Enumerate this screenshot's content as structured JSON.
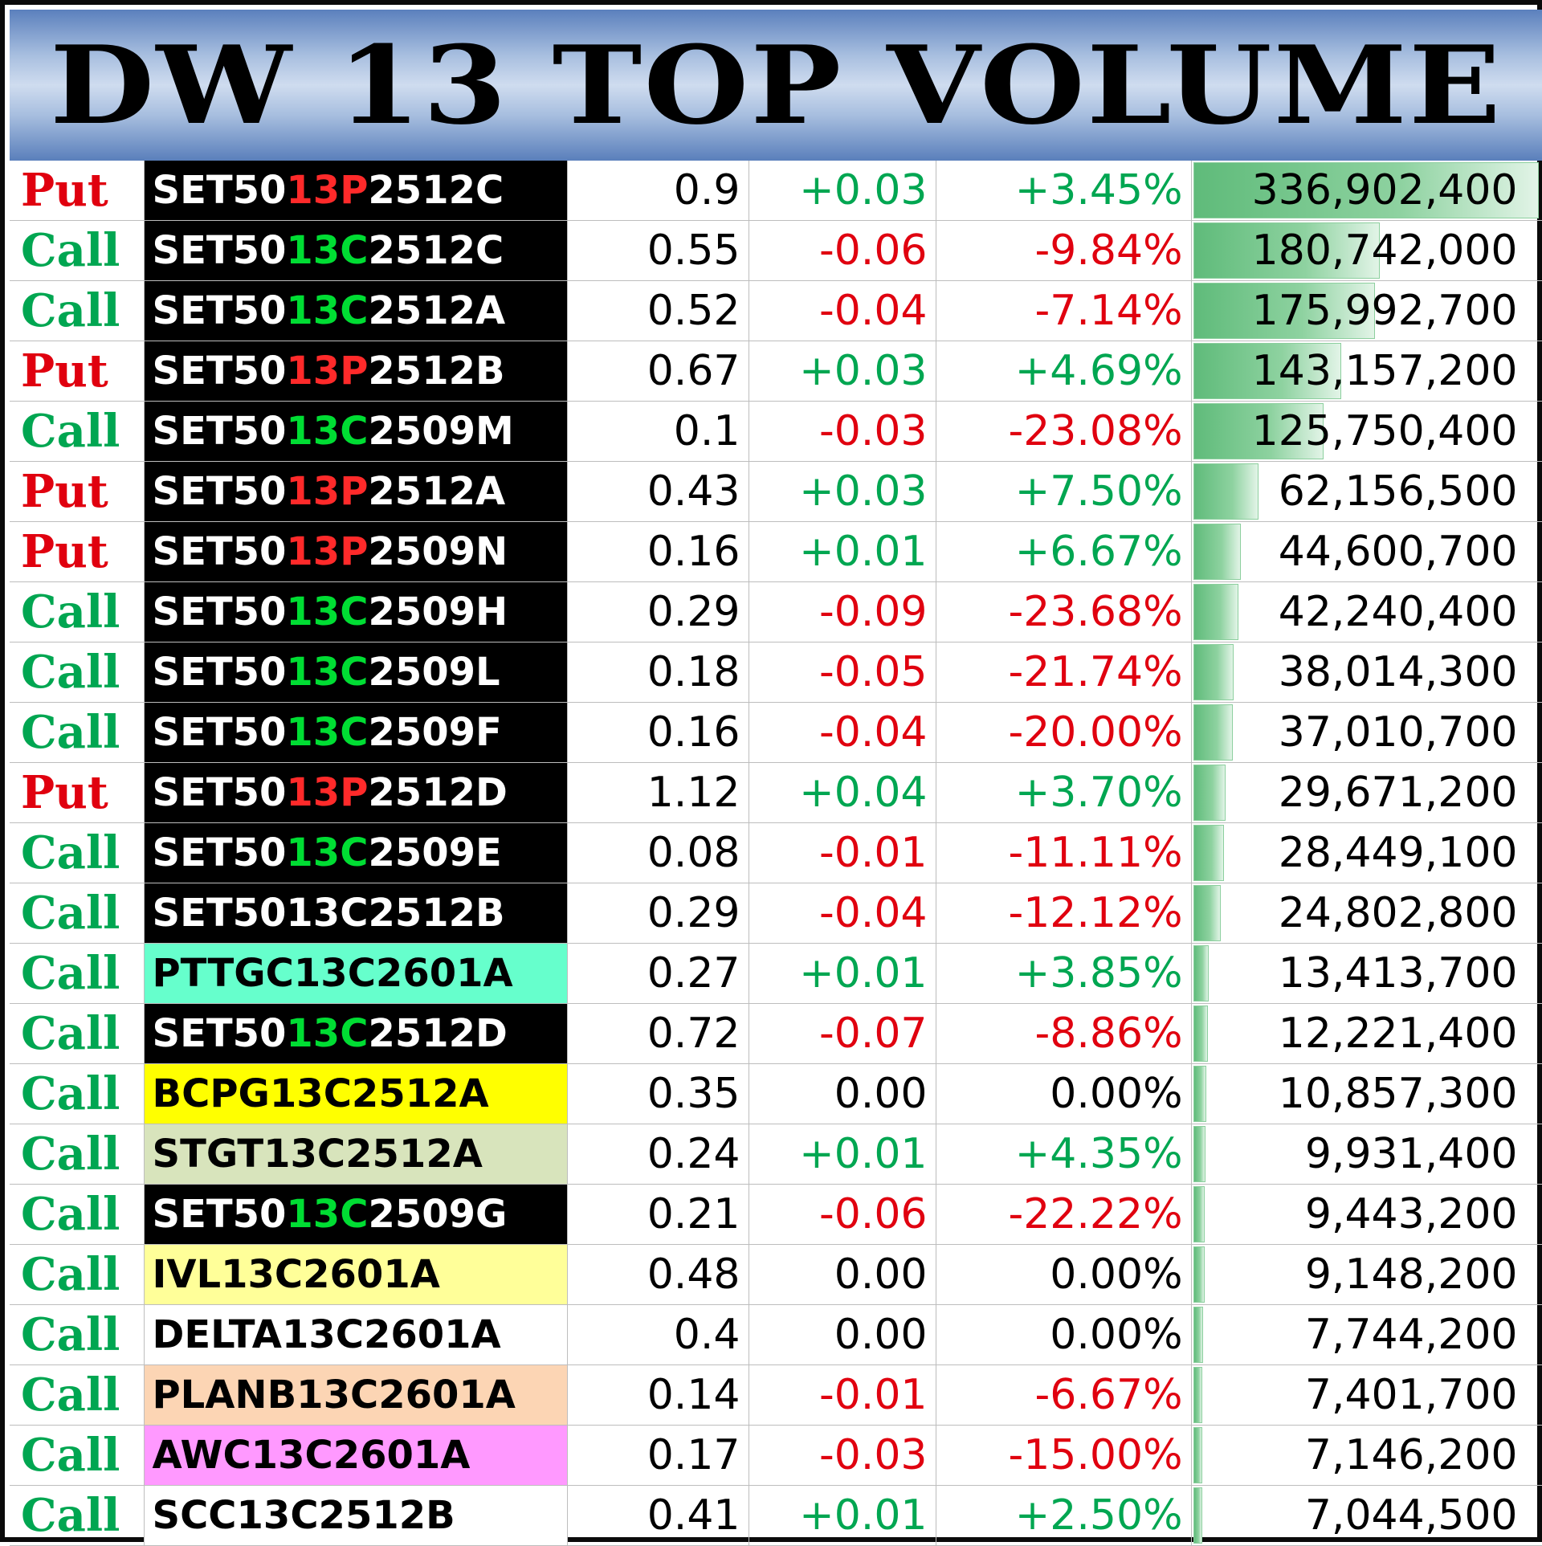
{
  "title": "DW 13 TOP VOLUME",
  "colors": {
    "put": "#e0000f",
    "call": "#00a651",
    "positive": "#00a651",
    "negative": "#e0000f",
    "neutral": "#000000",
    "highlight_13P": "#ff2a2a",
    "highlight_13C": "#00dd33"
  },
  "max_volume": 336902400,
  "rows": [
    {
      "type": "Put",
      "name_pre": "SET50",
      "name_mid": "13P",
      "name_post": "2512C",
      "name_bg": "#000000",
      "name_fg": "#ffffff",
      "mid_color": "#ff2a2a",
      "price": "0.9",
      "change": "+0.03",
      "pct": "+3.45%",
      "dir": "pos",
      "volume": "336,902,400",
      "volume_value": 336902400
    },
    {
      "type": "Call",
      "name_pre": "SET50",
      "name_mid": "13C",
      "name_post": "2512C",
      "name_bg": "#000000",
      "name_fg": "#ffffff",
      "mid_color": "#00dd33",
      "price": "0.55",
      "change": "-0.06",
      "pct": "-9.84%",
      "dir": "neg",
      "volume": "180,742,000",
      "volume_value": 180742000
    },
    {
      "type": "Call",
      "name_pre": "SET50",
      "name_mid": "13C",
      "name_post": "2512A",
      "name_bg": "#000000",
      "name_fg": "#ffffff",
      "mid_color": "#00dd33",
      "price": "0.52",
      "change": "-0.04",
      "pct": "-7.14%",
      "dir": "neg",
      "volume": "175,992,700",
      "volume_value": 175992700
    },
    {
      "type": "Put",
      "name_pre": "SET50",
      "name_mid": "13P",
      "name_post": "2512B",
      "name_bg": "#000000",
      "name_fg": "#ffffff",
      "mid_color": "#ff2a2a",
      "price": "0.67",
      "change": "+0.03",
      "pct": "+4.69%",
      "dir": "pos",
      "volume": "143,157,200",
      "volume_value": 143157200
    },
    {
      "type": "Call",
      "name_pre": "SET50",
      "name_mid": "13C",
      "name_post": "2509M",
      "name_bg": "#000000",
      "name_fg": "#ffffff",
      "mid_color": "#00dd33",
      "price": "0.1",
      "change": "-0.03",
      "pct": "-23.08%",
      "dir": "neg",
      "volume": "125,750,400",
      "volume_value": 125750400
    },
    {
      "type": "Put",
      "name_pre": "SET50",
      "name_mid": "13P",
      "name_post": "2512A",
      "name_bg": "#000000",
      "name_fg": "#ffffff",
      "mid_color": "#ff2a2a",
      "price": "0.43",
      "change": "+0.03",
      "pct": "+7.50%",
      "dir": "pos",
      "volume": "62,156,500",
      "volume_value": 62156500
    },
    {
      "type": "Put",
      "name_pre": "SET50",
      "name_mid": "13P",
      "name_post": "2509N",
      "name_bg": "#000000",
      "name_fg": "#ffffff",
      "mid_color": "#ff2a2a",
      "price": "0.16",
      "change": "+0.01",
      "pct": "+6.67%",
      "dir": "pos",
      "volume": "44,600,700",
      "volume_value": 44600700
    },
    {
      "type": "Call",
      "name_pre": "SET50",
      "name_mid": "13C",
      "name_post": "2509H",
      "name_bg": "#000000",
      "name_fg": "#ffffff",
      "mid_color": "#00dd33",
      "price": "0.29",
      "change": "-0.09",
      "pct": "-23.68%",
      "dir": "neg",
      "volume": "42,240,400",
      "volume_value": 42240400
    },
    {
      "type": "Call",
      "name_pre": "SET50",
      "name_mid": "13C",
      "name_post": "2509L",
      "name_bg": "#000000",
      "name_fg": "#ffffff",
      "mid_color": "#00dd33",
      "price": "0.18",
      "change": "-0.05",
      "pct": "-21.74%",
      "dir": "neg",
      "volume": "38,014,300",
      "volume_value": 38014300
    },
    {
      "type": "Call",
      "name_pre": "SET50",
      "name_mid": "13C",
      "name_post": "2509F",
      "name_bg": "#000000",
      "name_fg": "#ffffff",
      "mid_color": "#00dd33",
      "price": "0.16",
      "change": "-0.04",
      "pct": "-20.00%",
      "dir": "neg",
      "volume": "37,010,700",
      "volume_value": 37010700
    },
    {
      "type": "Put",
      "name_pre": "SET50",
      "name_mid": "13P",
      "name_post": "2512D",
      "name_bg": "#000000",
      "name_fg": "#ffffff",
      "mid_color": "#ff2a2a",
      "price": "1.12",
      "change": "+0.04",
      "pct": "+3.70%",
      "dir": "pos",
      "volume": "29,671,200",
      "volume_value": 29671200
    },
    {
      "type": "Call",
      "name_pre": "SET50",
      "name_mid": "13C",
      "name_post": "2509E",
      "name_bg": "#000000",
      "name_fg": "#ffffff",
      "mid_color": "#00dd33",
      "price": "0.08",
      "change": "-0.01",
      "pct": "-11.11%",
      "dir": "neg",
      "volume": "28,449,100",
      "volume_value": 28449100
    },
    {
      "type": "Call",
      "name_pre": "SET50",
      "name_mid": "13C",
      "name_post": "2512B",
      "name_bg": "#000000",
      "name_fg": "#ffffff",
      "mid_color": "#ffffff",
      "price": "0.29",
      "change": "-0.04",
      "pct": "-12.12%",
      "dir": "neg",
      "volume": "24,802,800",
      "volume_value": 24802800
    },
    {
      "type": "Call",
      "name_pre": "PTTGC13C2601A",
      "name_mid": "",
      "name_post": "",
      "name_bg": "#66ffcc",
      "name_fg": "#000000",
      "mid_color": "#000000",
      "price": "0.27",
      "change": "+0.01",
      "pct": "+3.85%",
      "dir": "pos",
      "volume": "13,413,700",
      "volume_value": 13413700
    },
    {
      "type": "Call",
      "name_pre": "SET50",
      "name_mid": "13C",
      "name_post": "2512D",
      "name_bg": "#000000",
      "name_fg": "#ffffff",
      "mid_color": "#00dd33",
      "price": "0.72",
      "change": "-0.07",
      "pct": "-8.86%",
      "dir": "neg",
      "volume": "12,221,400",
      "volume_value": 12221400
    },
    {
      "type": "Call",
      "name_pre": "BCPG13C2512A",
      "name_mid": "",
      "name_post": "",
      "name_bg": "#ffff00",
      "name_fg": "#000000",
      "mid_color": "#000000",
      "price": "0.35",
      "change": "0.00",
      "pct": "0.00%",
      "dir": "zero",
      "volume": "10,857,300",
      "volume_value": 10857300
    },
    {
      "type": "Call",
      "name_pre": "STGT13C2512A",
      "name_mid": "",
      "name_post": "",
      "name_bg": "#d8e4bc",
      "name_fg": "#000000",
      "mid_color": "#000000",
      "price": "0.24",
      "change": "+0.01",
      "pct": "+4.35%",
      "dir": "pos",
      "volume": "9,931,400",
      "volume_value": 9931400
    },
    {
      "type": "Call",
      "name_pre": "SET50",
      "name_mid": "13C",
      "name_post": "2509G",
      "name_bg": "#000000",
      "name_fg": "#ffffff",
      "mid_color": "#00dd33",
      "price": "0.21",
      "change": "-0.06",
      "pct": "-22.22%",
      "dir": "neg",
      "volume": "9,443,200",
      "volume_value": 9443200
    },
    {
      "type": "Call",
      "name_pre": "IVL13C2601A",
      "name_mid": "",
      "name_post": "",
      "name_bg": "#ffff99",
      "name_fg": "#000000",
      "mid_color": "#000000",
      "price": "0.48",
      "change": "0.00",
      "pct": "0.00%",
      "dir": "zero",
      "volume": "9,148,200",
      "volume_value": 9148200
    },
    {
      "type": "Call",
      "name_pre": "DELTA13C2601A",
      "name_mid": "",
      "name_post": "",
      "name_bg": "#ffffff",
      "name_fg": "#000000",
      "mid_color": "#000000",
      "price": "0.4",
      "change": "0.00",
      "pct": "0.00%",
      "dir": "zero",
      "volume": "7,744,200",
      "volume_value": 7744200
    },
    {
      "type": "Call",
      "name_pre": "PLANB13C2601A",
      "name_mid": "",
      "name_post": "",
      "name_bg": "#fcd5b4",
      "name_fg": "#000000",
      "mid_color": "#000000",
      "price": "0.14",
      "change": "-0.01",
      "pct": "-6.67%",
      "dir": "neg",
      "volume": "7,401,700",
      "volume_value": 7401700
    },
    {
      "type": "Call",
      "name_pre": "AWC13C2601A",
      "name_mid": "",
      "name_post": "",
      "name_bg": "#ff99ff",
      "name_fg": "#000000",
      "mid_color": "#000000",
      "price": "0.17",
      "change": "-0.03",
      "pct": "-15.00%",
      "dir": "neg",
      "volume": "7,146,200",
      "volume_value": 7146200
    },
    {
      "type": "Call",
      "name_pre": "SCC13C2512B",
      "name_mid": "",
      "name_post": "",
      "name_bg": "#ffffff",
      "name_fg": "#000000",
      "mid_color": "#000000",
      "price": "0.41",
      "change": "+0.01",
      "pct": "+2.50%",
      "dir": "pos",
      "volume": "7,044,500",
      "volume_value": 7044500
    }
  ]
}
